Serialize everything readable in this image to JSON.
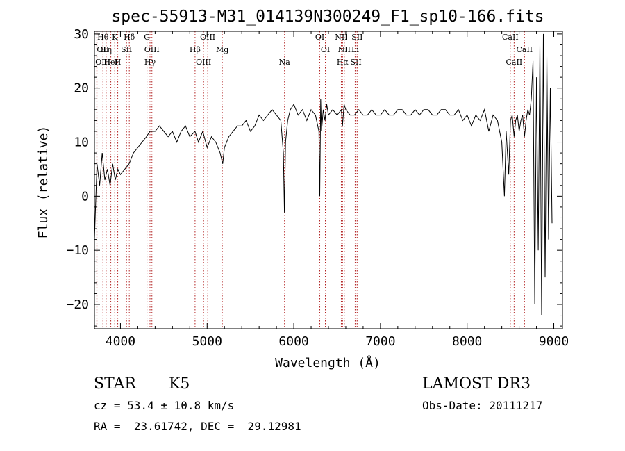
{
  "chart_data": {
    "type": "line",
    "title": "spec-55913-M31_014139N300249_F1_sp10-166.fits",
    "xlabel": "Wavelength (Å)",
    "ylabel": "Flux (relative)",
    "xlim": [
      3700,
      9100
    ],
    "ylim": [
      -24.5,
      30.5
    ],
    "xticks": [
      4000,
      5000,
      6000,
      7000,
      8000,
      9000
    ],
    "yticks": [
      -20,
      -10,
      0,
      10,
      20,
      30
    ],
    "grid": false,
    "line_color": "#000000",
    "marker_color": "#b22222",
    "series": [
      {
        "x": [
          3700,
          3730,
          3760,
          3790,
          3820,
          3850,
          3880,
          3910,
          3940,
          3970,
          4000,
          4050,
          4100,
          4150,
          4200,
          4250,
          4300,
          4340,
          4400,
          4450,
          4500,
          4550,
          4600,
          4650,
          4700,
          4750,
          4800,
          4860,
          4900,
          4950,
          5000,
          5050,
          5100,
          5150,
          5180,
          5200,
          5250,
          5300,
          5350,
          5400,
          5450,
          5500,
          5550,
          5600,
          5650,
          5700,
          5750,
          5800,
          5850,
          5880,
          5892,
          5905,
          5930,
          5960,
          6000,
          6050,
          6100,
          6150,
          6200,
          6250,
          6290,
          6300,
          6310,
          6320,
          6340,
          6360,
          6380,
          6400,
          6450,
          6500,
          6550,
          6562,
          6580,
          6600,
          6650,
          6700,
          6750,
          6800,
          6850,
          6900,
          6950,
          7000,
          7050,
          7100,
          7150,
          7200,
          7250,
          7300,
          7350,
          7400,
          7450,
          7500,
          7550,
          7600,
          7650,
          7700,
          7750,
          7800,
          7850,
          7900,
          7950,
          8000,
          8050,
          8100,
          8150,
          8200,
          8250,
          8300,
          8350,
          8400,
          8430,
          8450,
          8480,
          8500,
          8520,
          8542,
          8560,
          8580,
          8600,
          8620,
          8640,
          8662,
          8680,
          8700,
          8720,
          8740,
          8760,
          8780,
          8800,
          8820,
          8840,
          8860,
          8880,
          8900,
          8920,
          8940,
          8960,
          8980
        ],
        "y": [
          -8,
          6,
          2,
          8,
          3,
          5,
          2,
          6,
          3,
          5,
          4,
          5,
          6,
          8,
          9,
          10,
          11,
          12,
          12,
          13,
          12,
          11,
          12,
          10,
          12,
          13,
          11,
          12,
          10,
          12,
          9,
          11,
          10,
          8,
          6,
          9,
          11,
          12,
          13,
          13,
          14,
          12,
          13,
          15,
          14,
          15,
          16,
          15,
          14,
          8,
          -3,
          10,
          14,
          16,
          17,
          15,
          16,
          14,
          16,
          15,
          12,
          0,
          18,
          12,
          16,
          14,
          17,
          15,
          16,
          15,
          16,
          13,
          17,
          16,
          15,
          15,
          16,
          15,
          15,
          16,
          15,
          15,
          16,
          15,
          15,
          16,
          16,
          15,
          15,
          16,
          15,
          16,
          16,
          15,
          15,
          16,
          16,
          15,
          15,
          16,
          14,
          15,
          13,
          15,
          14,
          16,
          12,
          15,
          14,
          10,
          0,
          12,
          4,
          14,
          15,
          11,
          14,
          15,
          12,
          14,
          15,
          11,
          14,
          16,
          15,
          18,
          25,
          -20,
          22,
          -10,
          28,
          -22,
          30,
          -15,
          26,
          -8,
          20,
          -5
        ]
      }
    ],
    "lines": [
      {
        "labels": [
          "Hθ",
          "OII",
          "OIII"
        ],
        "wl": [
          3798,
          3727,
          3729
        ]
      },
      {
        "labels": [
          "Hη"
        ],
        "wl": [
          3835
        ]
      },
      {
        "labels": [
          "HeI"
        ],
        "wl": [
          3889
        ]
      },
      {
        "labels": [
          "K"
        ],
        "wl": [
          3934
        ]
      },
      {
        "labels": [
          "SII"
        ],
        "wl": [
          4070
        ]
      },
      {
        "labels": [
          "H"
        ],
        "wl": [
          3969
        ]
      },
      {
        "labels": [
          "Hδ"
        ],
        "wl": [
          4102
        ]
      },
      {
        "labels": [
          "OIII"
        ],
        "wl": [
          4363
        ]
      },
      {
        "labels": [
          "Hγ"
        ],
        "wl": [
          4341
        ]
      },
      {
        "labels": [
          "G"
        ],
        "wl": [
          4306
        ]
      },
      {
        "labels": [
          "Hβ"
        ],
        "wl": [
          4861
        ]
      },
      {
        "labels": [
          "OIII"
        ],
        "wl": [
          4959
        ]
      },
      {
        "labels": [
          "OIII"
        ],
        "wl": [
          5007
        ]
      },
      {
        "labels": [
          "Mg"
        ],
        "wl": [
          5175
        ]
      },
      {
        "labels": [
          "Na"
        ],
        "wl": [
          5893
        ]
      },
      {
        "labels": [
          "OI"
        ],
        "wl": [
          6300
        ]
      },
      {
        "labels": [
          "OI"
        ],
        "wl": [
          6364
        ]
      },
      {
        "labels": [
          "Hα"
        ],
        "wl": [
          6563
        ]
      },
      {
        "labels": [
          "NII"
        ],
        "wl": [
          6548
        ]
      },
      {
        "labels": [
          "NII"
        ],
        "wl": [
          6583
        ]
      },
      {
        "labels": [
          "SII"
        ],
        "wl": [
          6717
        ]
      },
      {
        "labels": [
          "SII"
        ],
        "wl": [
          6731
        ]
      },
      {
        "labels": [
          "Li"
        ],
        "wl": [
          6708
        ]
      },
      {
        "labels": [
          "CaII"
        ],
        "wl": [
          8542
        ]
      },
      {
        "labels": [
          "CaII"
        ],
        "wl": [
          8498
        ]
      },
      {
        "labels": [
          "CaII"
        ],
        "wl": [
          8662
        ]
      }
    ]
  },
  "info": {
    "class_label": "STAR",
    "subclass": "K5",
    "survey": "LAMOST DR3",
    "cz": "cz = 53.4 ± 10.8 km/s",
    "obs_date": "Obs-Date: 20111217",
    "radec": "RA =  23.61742, DEC =  29.12981"
  }
}
